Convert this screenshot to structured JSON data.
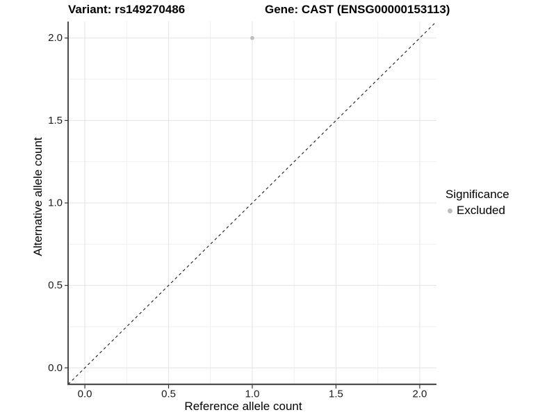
{
  "header": {
    "variant_title": "Variant: rs149270486",
    "gene_title": "Gene: CAST (ENSG00000153113)"
  },
  "axes": {
    "x": {
      "label": "Reference allele count",
      "ticks": [
        "0.0",
        "0.5",
        "1.0",
        "1.5",
        "2.0"
      ]
    },
    "y": {
      "label": "Alternative allele count",
      "ticks": [
        "0.0",
        "0.5",
        "1.0",
        "1.5",
        "2.0"
      ]
    }
  },
  "legend": {
    "title": "Significance",
    "items": [
      {
        "label": "Excluded",
        "color": "#bdbdbd",
        "marker": "circle"
      }
    ]
  },
  "chart_data": {
    "type": "scatter",
    "title": "Variant: rs149270486 / Gene: CAST (ENSG00000153113)",
    "xlabel": "Reference allele count",
    "ylabel": "Alternative allele count",
    "xlim": [
      -0.1,
      2.1
    ],
    "ylim": [
      -0.1,
      2.1
    ],
    "xticks": [
      0.0,
      0.5,
      1.0,
      1.5,
      2.0
    ],
    "yticks": [
      0.0,
      0.5,
      1.0,
      1.5,
      2.0
    ],
    "minor_step": 0.25,
    "grid": "major+minor",
    "legend_position": "right",
    "series": [
      {
        "name": "Excluded",
        "color": "#bdbdbd",
        "points": [
          [
            1.0,
            2.0
          ]
        ]
      }
    ],
    "annotations": [
      {
        "type": "line",
        "style": "dashed",
        "color": "#1a1a1a",
        "from": [
          -0.1,
          -0.1
        ],
        "to": [
          2.1,
          2.1
        ]
      }
    ],
    "colors": {
      "gridline_major": "#e3e3e3",
      "gridline_minor": "#efefef",
      "axis_line_y": "#000000",
      "axis_line_x": "#4d4d4d",
      "tick": "#333333",
      "tick_label": "#1a1a1a",
      "point": "#bdbdbd"
    }
  }
}
